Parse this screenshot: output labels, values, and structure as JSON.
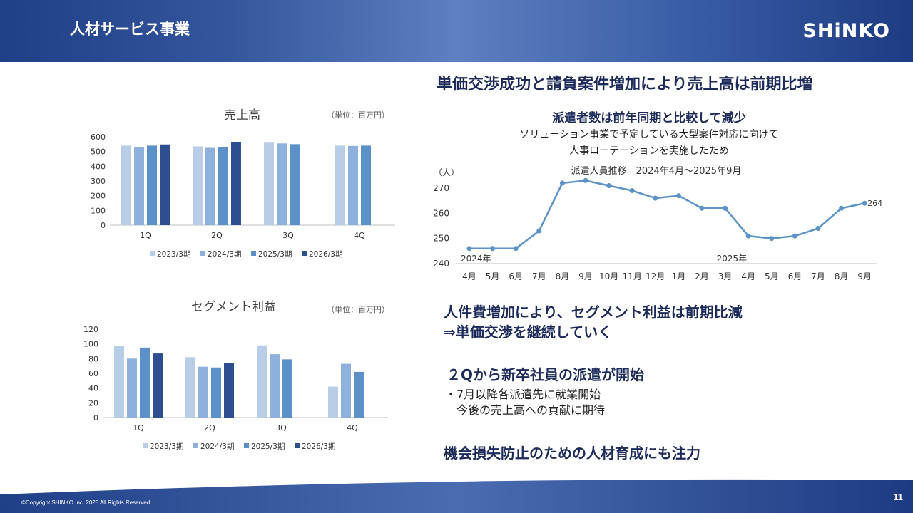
{
  "header": {
    "title": "人材サービス事業",
    "logo": "SHiNKO"
  },
  "footer": {
    "copyright": "©Copyright SHINKO Inc. 2025 All Rights Reserved.",
    "page": "11"
  },
  "colors": {
    "s2023": "#b8cde6",
    "s2024": "#8db0dc",
    "s2025": "#5b90c8",
    "s2026": "#2e4f8f",
    "line": "#5b93c6",
    "navy": "#1c2b5a"
  },
  "right": {
    "headline": "単価交渉成功と請負案件増加により売上高は前期比増",
    "sub_bold": "派遣者数は前年同期と比較して減少",
    "sub_line1": "ソリューション事業で予定している大型案件対応に向けて",
    "sub_line2": "人事ローテーションを実施したため",
    "text1_line1": "人件費増加により、セグメント利益は前期比減",
    "text1_line2": "⇒単価交渉を継続していく",
    "text2_head": "２Qから新卒社員の派遣が開始",
    "text2_line1": "・7月以降各派遣先に就業開始",
    "text2_line2": "　今後の売上高への貢献に期待",
    "text3": "機会損失防止のための人材育成にも注力"
  },
  "chart_data": [
    {
      "type": "bar",
      "title": "売上高",
      "unit": "（単位：百万円）",
      "categories": [
        "1Q",
        "2Q",
        "3Q",
        "4Q"
      ],
      "series": [
        {
          "name": "2023/3期",
          "values": [
            540,
            535,
            560,
            540
          ]
        },
        {
          "name": "2024/3期",
          "values": [
            530,
            525,
            555,
            538
          ]
        },
        {
          "name": "2025/3期",
          "values": [
            540,
            532,
            550,
            540
          ]
        },
        {
          "name": "2026/3期",
          "values": [
            548,
            566,
            null,
            null
          ]
        }
      ],
      "ylim": [
        0,
        600
      ],
      "yticks": [
        0,
        100,
        200,
        300,
        400,
        500,
        600
      ],
      "grid": false,
      "legend": "bottom"
    },
    {
      "type": "bar",
      "title": "セグメント利益",
      "unit": "（単位：百万円）",
      "categories": [
        "1Q",
        "2Q",
        "3Q",
        "4Q"
      ],
      "series": [
        {
          "name": "2023/3期",
          "values": [
            97,
            82,
            98,
            42
          ]
        },
        {
          "name": "2024/3期",
          "values": [
            80,
            69,
            86,
            73
          ]
        },
        {
          "name": "2025/3期",
          "values": [
            95,
            68,
            79,
            62
          ]
        },
        {
          "name": "2026/3期",
          "values": [
            87,
            74,
            null,
            null
          ]
        }
      ],
      "ylim": [
        0,
        120
      ],
      "yticks": [
        0,
        20,
        40,
        60,
        80,
        100,
        120
      ],
      "grid": false,
      "legend": "bottom"
    },
    {
      "type": "line",
      "title": "派遣人員推移　2024年4月～2025年9月",
      "ylabel": "（人）",
      "x": [
        "4月",
        "5月",
        "6月",
        "7月",
        "8月",
        "9月",
        "10月",
        "11月",
        "12月",
        "1月",
        "2月",
        "3月",
        "4月",
        "5月",
        "6月",
        "7月",
        "8月",
        "9月"
      ],
      "year_labels": [
        {
          "index": 0,
          "text": "2024年"
        },
        {
          "index": 11,
          "text": "2025年"
        }
      ],
      "values": [
        246,
        246,
        246,
        253,
        272,
        273,
        271,
        269,
        266,
        267,
        262,
        262,
        251,
        250,
        251,
        254,
        262,
        264
      ],
      "last_label": "264",
      "ylim": [
        240,
        270
      ],
      "yticks": [
        240,
        250,
        260,
        270
      ],
      "grid": false
    }
  ]
}
